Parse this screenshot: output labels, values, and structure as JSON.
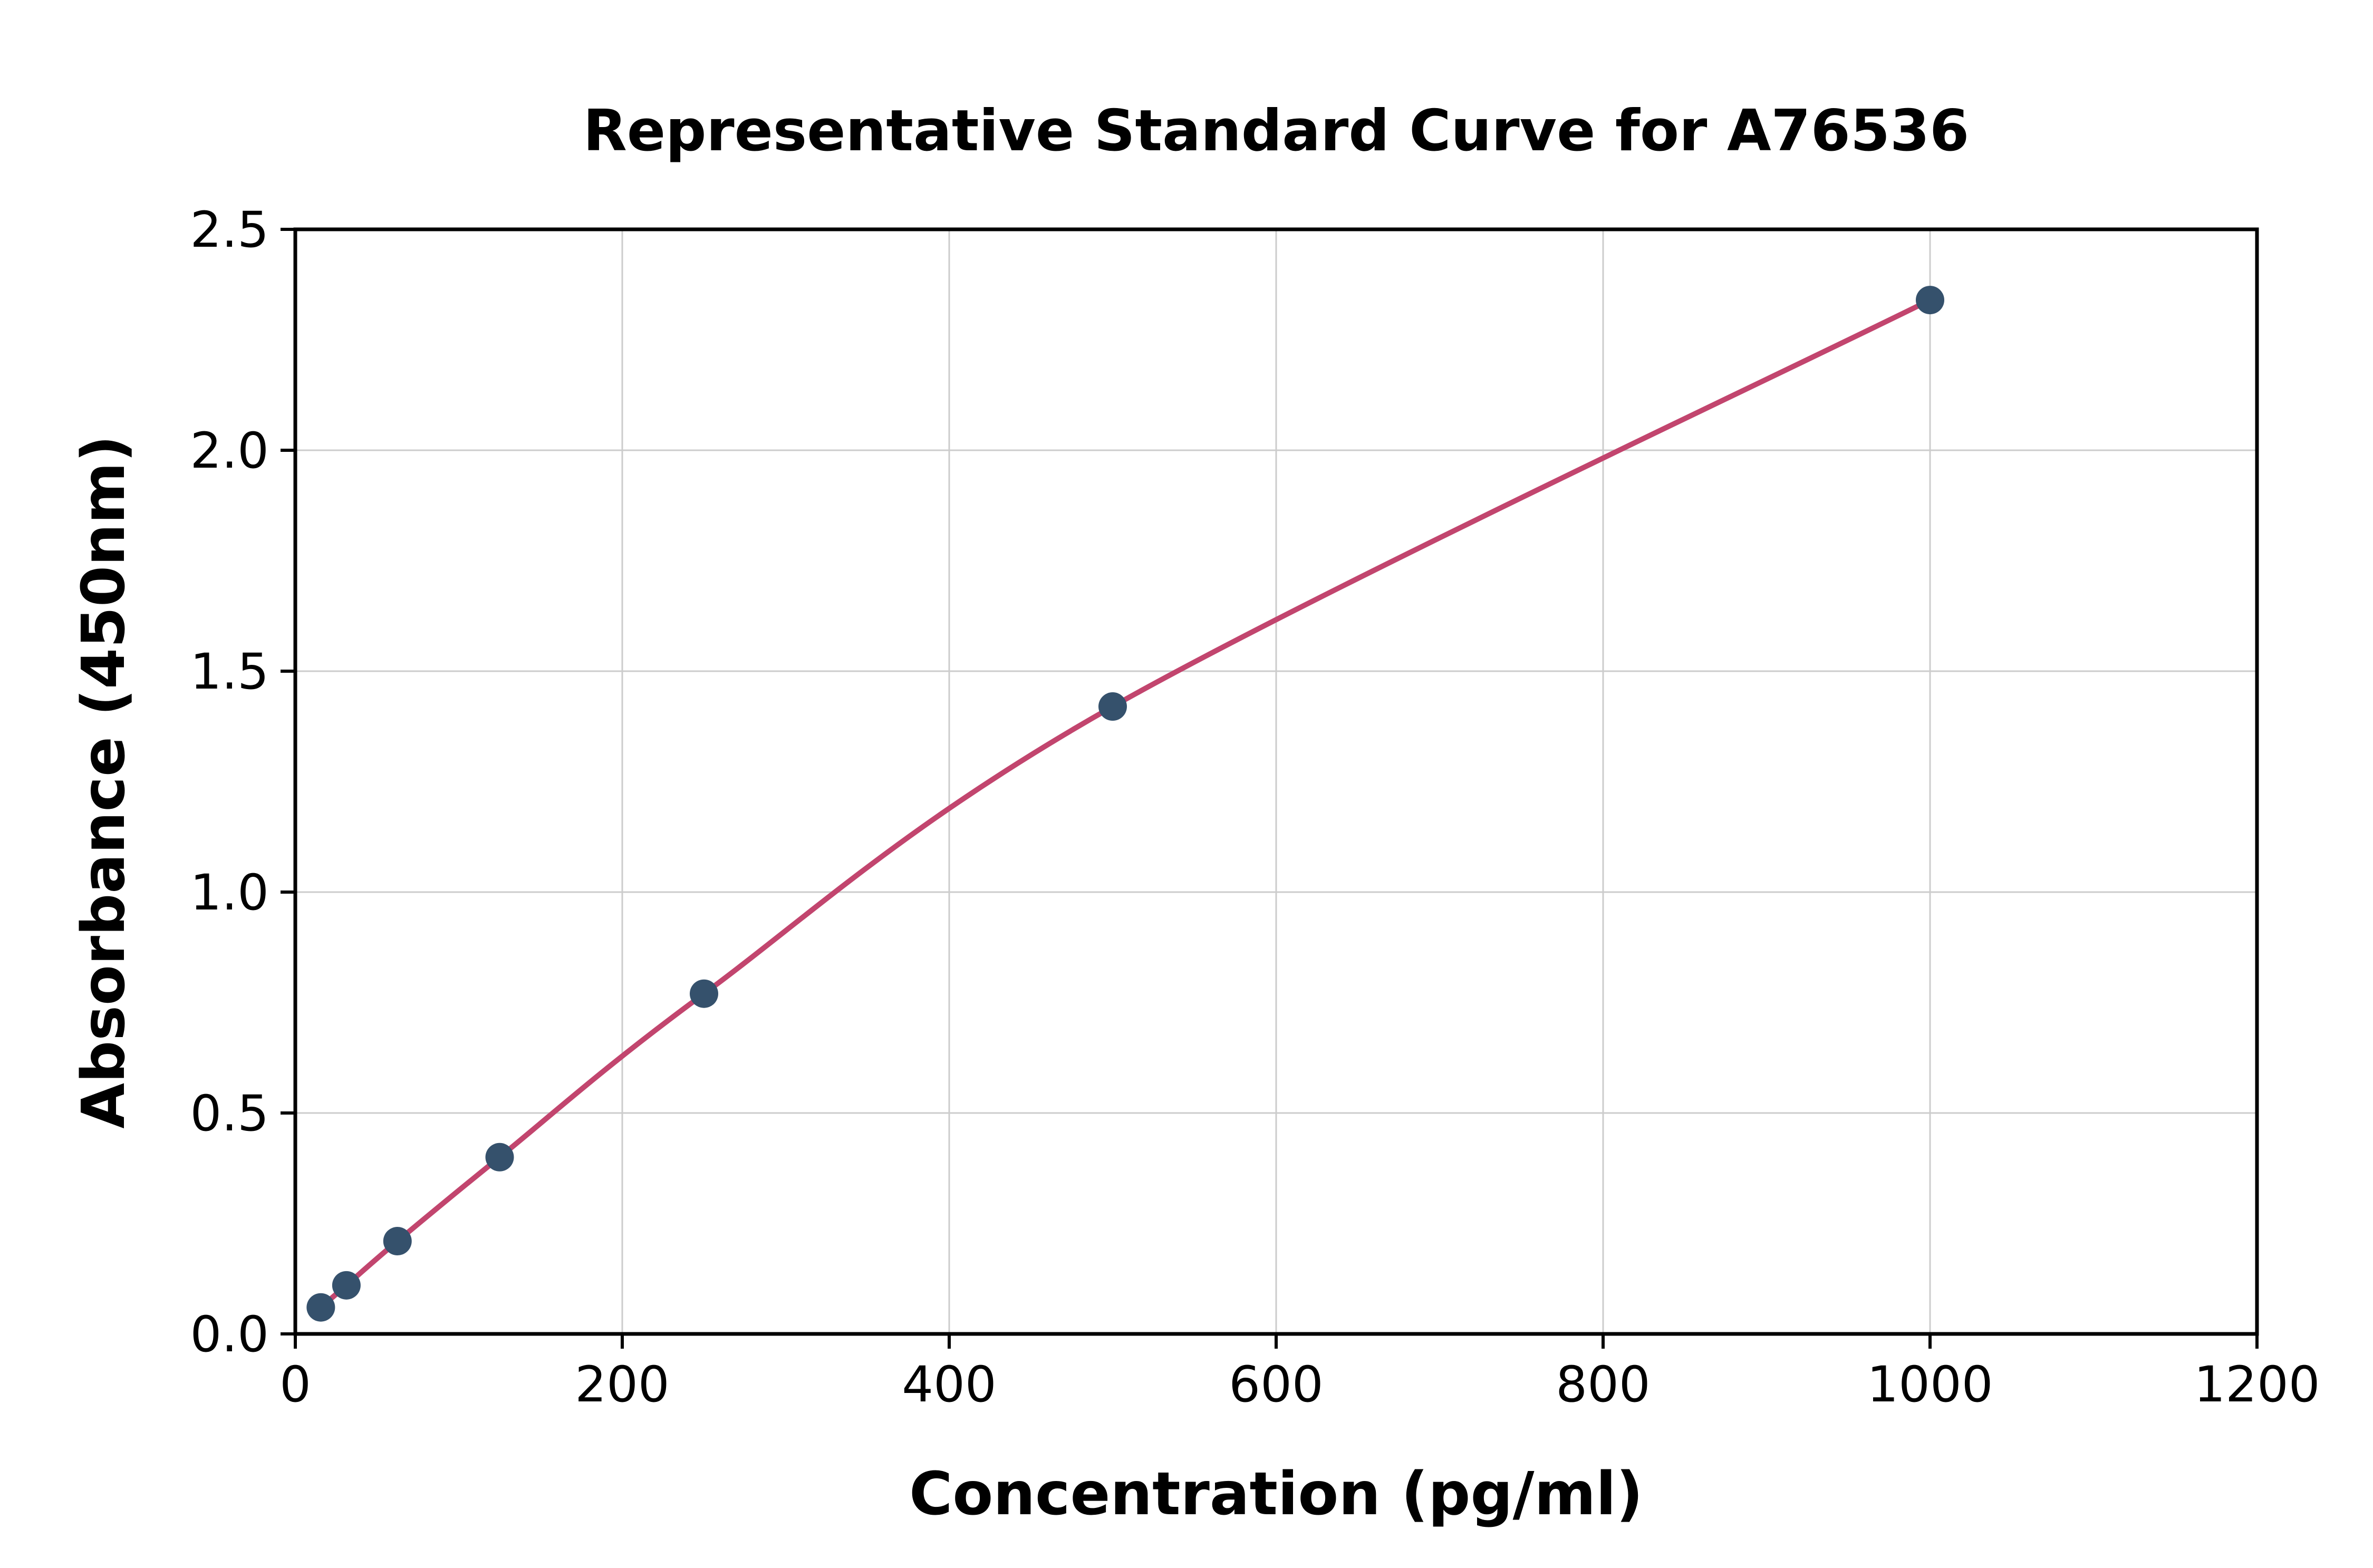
{
  "chart_data": {
    "type": "scatter",
    "title": "Representative Standard Curve for A76536",
    "xlabel": "Concentration (pg/ml)",
    "ylabel": "Absorbance (450nm)",
    "xlim": [
      0,
      1200
    ],
    "ylim": [
      0,
      2.5
    ],
    "xticks": [
      0,
      200,
      400,
      600,
      800,
      1000,
      1200
    ],
    "xticklabels": [
      "0",
      "200",
      "400",
      "600",
      "800",
      "1000",
      "1200"
    ],
    "yticks": [
      0.0,
      0.5,
      1.0,
      1.5,
      2.0,
      2.5
    ],
    "yticklabels": [
      "0.0",
      "0.5",
      "1.0",
      "1.5",
      "2.0",
      "2.5"
    ],
    "grid": true,
    "legend": "none",
    "series": [
      {
        "name": "standard-curve",
        "x": [
          15.6,
          31.25,
          62.5,
          125,
          250,
          500,
          1000
        ],
        "y": [
          0.06,
          0.11,
          0.21,
          0.4,
          0.77,
          1.42,
          2.34
        ]
      }
    ],
    "colors": {
      "curve": "#c2456e",
      "points": "#35516c",
      "grid": "#cccccc",
      "spine": "#000000",
      "background": "#ffffff"
    }
  }
}
